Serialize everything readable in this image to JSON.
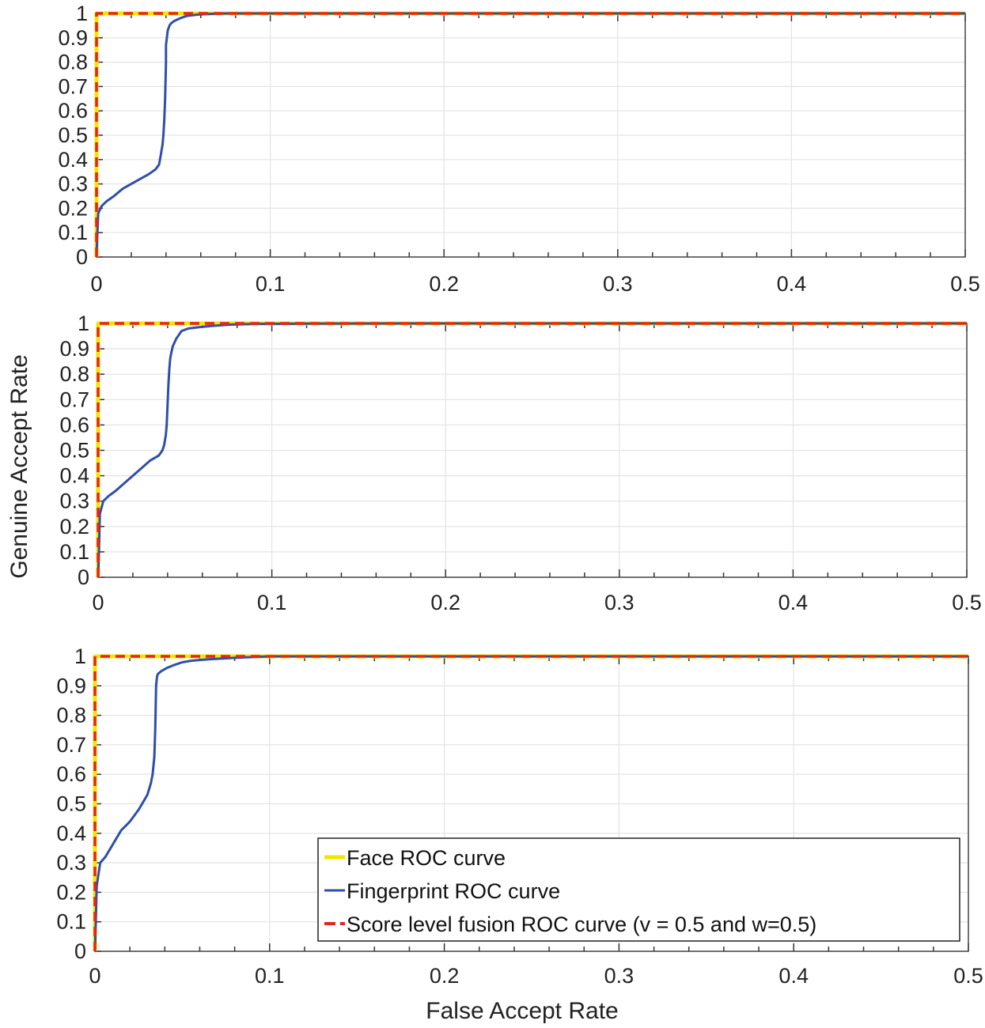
{
  "figure": {
    "ylabel": "Genuine Accept  Rate",
    "xlabel": "False Accept Rate"
  },
  "legend": {
    "placement": "bottom-right of lower panel",
    "entries": [
      {
        "label": "Face ROC curve",
        "color": "#f2e600",
        "style": "solid"
      },
      {
        "label": "Fingerprint ROC curve",
        "color": "#2f4fa8",
        "style": "solid"
      },
      {
        "label": "Score level fusion ROC curve (v = 0.5 and w=0.5)",
        "color": "#e8241c",
        "style": "dashed"
      }
    ]
  },
  "chart_data": [
    {
      "type": "line",
      "panel": "top",
      "xlim": [
        0,
        0.5
      ],
      "ylim": [
        0,
        1
      ],
      "xticks": [
        "0",
        "0.1",
        "0.2",
        "0.3",
        "0.4",
        "0.5"
      ],
      "yticks": [
        "0",
        "0.1",
        "0.2",
        "0.3",
        "0.4",
        "0.5",
        "0.6",
        "0.7",
        "0.8",
        "0.9",
        "1"
      ],
      "grid": true,
      "series": [
        {
          "name": "Face ROC curve",
          "x": [
            0,
            0,
            0.5
          ],
          "y": [
            0,
            1,
            1
          ]
        },
        {
          "name": "Fingerprint ROC curve",
          "x": [
            0,
            0.0005,
            0.001,
            0.003,
            0.006,
            0.01,
            0.015,
            0.02,
            0.025,
            0.03,
            0.034,
            0.036,
            0.037,
            0.0375,
            0.038,
            0.0385,
            0.039,
            0.0395,
            0.04,
            0.04,
            0.0405,
            0.041,
            0.042,
            0.043,
            0.045,
            0.048,
            0.052,
            0.058,
            0.065,
            0.075,
            0.1,
            0.2,
            0.5
          ],
          "y": [
            0,
            0.1,
            0.18,
            0.21,
            0.23,
            0.25,
            0.28,
            0.3,
            0.32,
            0.34,
            0.36,
            0.38,
            0.42,
            0.44,
            0.46,
            0.5,
            0.56,
            0.65,
            0.8,
            0.87,
            0.9,
            0.93,
            0.95,
            0.96,
            0.97,
            0.98,
            0.99,
            0.995,
            0.998,
            1.0,
            1.0,
            1.0,
            1.0
          ]
        },
        {
          "name": "Score level fusion ROC curve (v = 0.5 and w=0.5)",
          "x": [
            0,
            0,
            0.5
          ],
          "y": [
            0,
            1,
            1
          ]
        }
      ]
    },
    {
      "type": "line",
      "panel": "middle",
      "xlim": [
        0,
        0.5
      ],
      "ylim": [
        0,
        1
      ],
      "xticks": [
        "0",
        "0.1",
        "0.2",
        "0.3",
        "0.4",
        "0.5"
      ],
      "yticks": [
        "0",
        "0.1",
        "0.2",
        "0.3",
        "0.4",
        "0.5",
        "0.6",
        "0.7",
        "0.8",
        "0.9",
        "1"
      ],
      "grid": true,
      "series": [
        {
          "name": "Face ROC curve",
          "x": [
            0,
            0,
            0.5
          ],
          "y": [
            0,
            1,
            1
          ]
        },
        {
          "name": "Fingerprint ROC curve",
          "x": [
            0,
            0.0005,
            0.001,
            0.003,
            0.006,
            0.01,
            0.015,
            0.02,
            0.025,
            0.03,
            0.035,
            0.037,
            0.038,
            0.039,
            0.0395,
            0.04,
            0.0405,
            0.041,
            0.0415,
            0.042,
            0.043,
            0.045,
            0.048,
            0.052,
            0.058,
            0.065,
            0.075,
            0.09,
            0.12,
            0.18,
            0.5
          ],
          "y": [
            0,
            0.1,
            0.25,
            0.3,
            0.32,
            0.34,
            0.37,
            0.4,
            0.43,
            0.46,
            0.48,
            0.5,
            0.52,
            0.56,
            0.6,
            0.68,
            0.76,
            0.82,
            0.86,
            0.88,
            0.91,
            0.94,
            0.97,
            0.98,
            0.985,
            0.99,
            0.995,
            0.998,
            0.999,
            1.0,
            1.0
          ]
        },
        {
          "name": "Score level fusion ROC curve (v = 0.5 and w=0.5)",
          "x": [
            0,
            0,
            0.5
          ],
          "y": [
            0,
            1,
            1
          ]
        }
      ]
    },
    {
      "type": "line",
      "panel": "bottom",
      "xlim": [
        0,
        0.5
      ],
      "ylim": [
        0,
        1
      ],
      "xticks": [
        "0",
        "0.1",
        "0.2",
        "0.3",
        "0.4",
        "0.5"
      ],
      "yticks": [
        "0",
        "0.1",
        "0.2",
        "0.3",
        "0.4",
        "0.5",
        "0.6",
        "0.7",
        "0.8",
        "0.9",
        "1"
      ],
      "grid": true,
      "series": [
        {
          "name": "Face ROC curve",
          "x": [
            0,
            0,
            0.5
          ],
          "y": [
            0,
            1,
            1
          ]
        },
        {
          "name": "Fingerprint ROC curve",
          "x": [
            0,
            0.0005,
            0.001,
            0.003,
            0.006,
            0.01,
            0.015,
            0.02,
            0.025,
            0.03,
            0.032,
            0.033,
            0.034,
            0.0345,
            0.035,
            0.0355,
            0.036,
            0.038,
            0.041,
            0.045,
            0.05,
            0.055,
            0.065,
            0.08,
            0.1,
            0.2,
            0.5
          ],
          "y": [
            0,
            0.1,
            0.22,
            0.3,
            0.32,
            0.36,
            0.41,
            0.44,
            0.48,
            0.53,
            0.57,
            0.6,
            0.66,
            0.75,
            0.9,
            0.93,
            0.94,
            0.95,
            0.96,
            0.97,
            0.98,
            0.985,
            0.99,
            0.995,
            1.0,
            1.0,
            1.0
          ]
        },
        {
          "name": "Score level fusion ROC curve (v = 0.5 and w=0.5)",
          "x": [
            0,
            0,
            0.5
          ],
          "y": [
            0,
            1,
            1
          ]
        }
      ]
    }
  ]
}
